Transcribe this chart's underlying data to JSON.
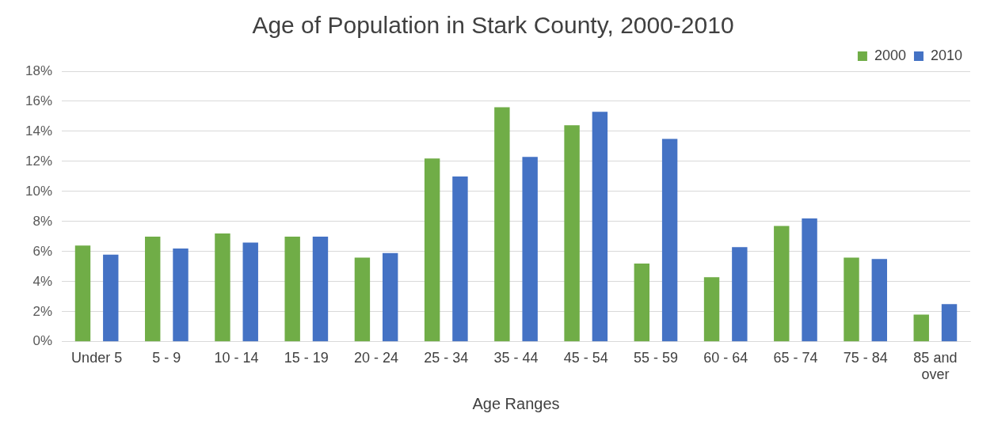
{
  "chart_data": {
    "type": "bar",
    "title": "Age of Population in Stark County, 2000-2010",
    "xlabel": "Age Ranges",
    "categories": [
      "Under 5",
      "5 - 9",
      "10 - 14",
      "15 - 19",
      "20 - 24",
      "25 - 34",
      "35 - 44",
      "45 - 54",
      "55 - 59",
      "60 - 64",
      "65 - 74",
      "75 - 84",
      "85 and over"
    ],
    "series": [
      {
        "name": "2000",
        "color": "#70ad47",
        "values": [
          6.4,
          7.0,
          7.2,
          7.0,
          5.6,
          12.2,
          15.6,
          14.4,
          5.2,
          4.3,
          7.7,
          5.6,
          1.8
        ]
      },
      {
        "name": "2010",
        "color": "#4472c4",
        "values": [
          5.8,
          6.2,
          6.6,
          7.0,
          5.9,
          11.0,
          12.3,
          15.3,
          13.5,
          6.3,
          8.2,
          5.5,
          2.5
        ]
      }
    ],
    "ylim": [
      0,
      18
    ],
    "yticks": [
      {
        "value": 0,
        "label": "0%"
      },
      {
        "value": 2,
        "label": "2%"
      },
      {
        "value": 4,
        "label": "4%"
      },
      {
        "value": 6,
        "label": "6%"
      },
      {
        "value": 8,
        "label": "8%"
      },
      {
        "value": 10,
        "label": "10%"
      },
      {
        "value": 12,
        "label": "12%"
      },
      {
        "value": 14,
        "label": "14%"
      },
      {
        "value": 16,
        "label": "16%"
      },
      {
        "value": 18,
        "label": "18%"
      }
    ],
    "grid": "y",
    "legend": "top right"
  }
}
